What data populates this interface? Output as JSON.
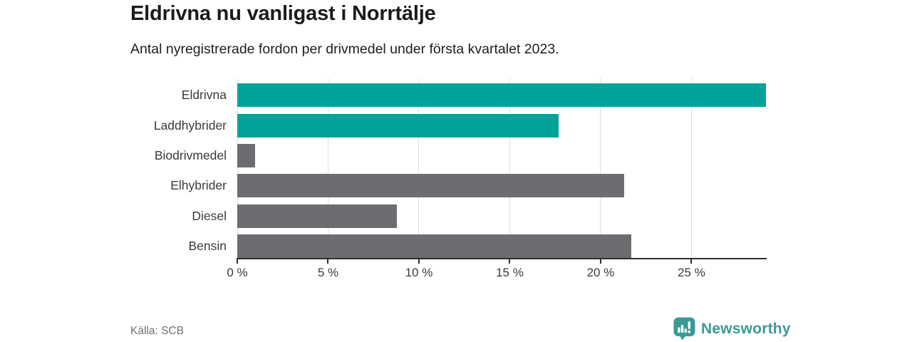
{
  "chart_data": {
    "type": "bar",
    "orientation": "horizontal",
    "title": "Eldrivna nu vanligast i Norrtälje",
    "subtitle": "Antal nyregistrerade fordon per drivmedel under första kvartalet 2023.",
    "categories": [
      "Eldrivna",
      "Laddhybrider",
      "Biodrivmedel",
      "Elhybrider",
      "Diesel",
      "Bensin"
    ],
    "values": [
      29.1,
      17.7,
      1.0,
      21.3,
      8.8,
      21.7
    ],
    "bar_colors": [
      "#00a39a",
      "#00a39a",
      "#6c6c71",
      "#6c6c71",
      "#6c6c71",
      "#6c6c71"
    ],
    "x_tick_labels": [
      "0 %",
      "5 %",
      "10 %",
      "15 %",
      "20 %",
      "25 %"
    ],
    "x_tick_values": [
      0,
      5,
      10,
      15,
      20,
      25
    ],
    "xlim": [
      0,
      29.1
    ],
    "grid": "vertical",
    "legend": "none",
    "source": "Källa: SCB"
  },
  "footer": {
    "brand": "Newsworthy"
  },
  "colors": {
    "teal_accent": "#00a39a",
    "gray_bar": "#6c6c71",
    "logo_teal": "#3a9a94",
    "gridline": "#dfdfdf",
    "axis": "#2f2f2f"
  }
}
